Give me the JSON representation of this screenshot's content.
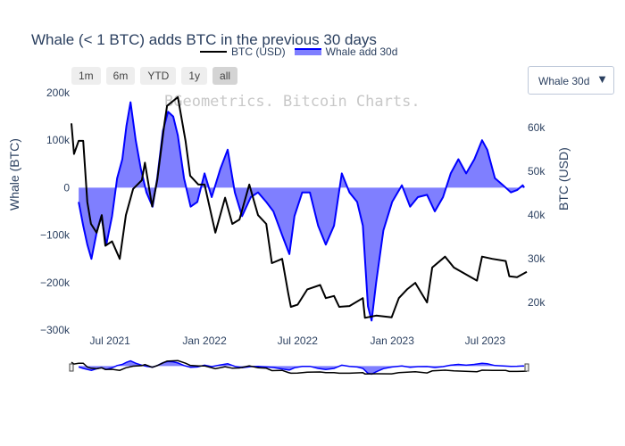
{
  "title": "Whale (< 1 BTC) adds BTC in the previous 30 days",
  "watermark": "BGeometrics. Bitcoin Charts.",
  "range_buttons": [
    "1m",
    "6m",
    "YTD",
    "1y",
    "all"
  ],
  "active_range": "all",
  "dropdown": {
    "selected": "Whale 30d",
    "icon": "caret-down-icon"
  },
  "legend": [
    {
      "name": "BTC (USD)",
      "style": "line",
      "color": "#000000"
    },
    {
      "name": "Whale add 30d",
      "style": "area",
      "color": "#0000ff"
    }
  ],
  "colors": {
    "whale_line": "#0000ff",
    "whale_fill": "rgba(0,0,255,0.5)",
    "btc_line": "#000000",
    "text": "#2a3f5f"
  },
  "chart_data": {
    "type": "area",
    "title": "Whale (< 1 BTC) adds BTC in the previous 30 days",
    "y_left_label": "Whale (BTC)",
    "y_right_label": "BTC (USD)",
    "x_ticks": [
      "Jul 2021",
      "Jan 2022",
      "Jul 2022",
      "Jan 2023",
      "Jul 2023"
    ],
    "y_left_ticks": [
      "−300k",
      "−200k",
      "−100k",
      "0",
      "100k",
      "200k"
    ],
    "y_right_ticks": [
      "20k",
      "30k",
      "40k",
      "50k",
      "60k"
    ],
    "x_range": [
      "2021-04-17",
      "2023-09-20"
    ],
    "y_left_range": [
      -300000,
      200000
    ],
    "y_right_range": [
      13700,
      68000
    ],
    "legend_position": "top",
    "rangeslider": true,
    "series": [
      {
        "name": "Whale add 30d",
        "axis": "left",
        "points": [
          [
            "2021-05-01",
            -30000
          ],
          [
            "2021-05-10",
            -80000
          ],
          [
            "2021-05-18",
            -120000
          ],
          [
            "2021-05-26",
            -150000
          ],
          [
            "2021-06-05",
            -95000
          ],
          [
            "2021-06-14",
            -60000
          ],
          [
            "2021-06-24",
            -120000
          ],
          [
            "2021-07-05",
            -60000
          ],
          [
            "2021-07-15",
            20000
          ],
          [
            "2021-07-25",
            60000
          ],
          [
            "2021-08-02",
            130000
          ],
          [
            "2021-08-10",
            180000
          ],
          [
            "2021-08-20",
            100000
          ],
          [
            "2021-08-30",
            40000
          ],
          [
            "2021-09-10",
            -10000
          ],
          [
            "2021-09-22",
            -40000
          ],
          [
            "2021-10-01",
            20000
          ],
          [
            "2021-10-12",
            120000
          ],
          [
            "2021-10-22",
            160000
          ],
          [
            "2021-11-01",
            150000
          ],
          [
            "2021-11-10",
            110000
          ],
          [
            "2021-11-22",
            20000
          ],
          [
            "2021-12-05",
            -40000
          ],
          [
            "2021-12-18",
            -30000
          ],
          [
            "2022-01-01",
            30000
          ],
          [
            "2022-01-15",
            -20000
          ],
          [
            "2022-02-01",
            40000
          ],
          [
            "2022-02-15",
            80000
          ],
          [
            "2022-03-01",
            -10000
          ],
          [
            "2022-03-15",
            -60000
          ],
          [
            "2022-04-01",
            -20000
          ],
          [
            "2022-04-15",
            -10000
          ],
          [
            "2022-05-01",
            -30000
          ],
          [
            "2022-05-15",
            -50000
          ],
          [
            "2022-06-01",
            -100000
          ],
          [
            "2022-06-15",
            -140000
          ],
          [
            "2022-06-25",
            -60000
          ],
          [
            "2022-07-10",
            -10000
          ],
          [
            "2022-07-25",
            -10000
          ],
          [
            "2022-08-10",
            -80000
          ],
          [
            "2022-08-25",
            -120000
          ],
          [
            "2022-09-10",
            -80000
          ],
          [
            "2022-09-25",
            30000
          ],
          [
            "2022-10-10",
            -10000
          ],
          [
            "2022-10-25",
            -30000
          ],
          [
            "2022-11-05",
            -80000
          ],
          [
            "2022-11-15",
            -250000
          ],
          [
            "2022-11-22",
            -280000
          ],
          [
            "2022-12-01",
            -200000
          ],
          [
            "2022-12-15",
            -90000
          ],
          [
            "2023-01-01",
            -30000
          ],
          [
            "2023-01-20",
            5000
          ],
          [
            "2023-02-05",
            -40000
          ],
          [
            "2023-02-20",
            -20000
          ],
          [
            "2023-03-10",
            -15000
          ],
          [
            "2023-03-25",
            -50000
          ],
          [
            "2023-04-10",
            -20000
          ],
          [
            "2023-04-25",
            30000
          ],
          [
            "2023-05-10",
            60000
          ],
          [
            "2023-05-25",
            30000
          ],
          [
            "2023-06-10",
            60000
          ],
          [
            "2023-06-25",
            100000
          ],
          [
            "2023-07-05",
            80000
          ],
          [
            "2023-07-20",
            20000
          ],
          [
            "2023-08-05",
            5000
          ],
          [
            "2023-08-20",
            -10000
          ],
          [
            "2023-09-01",
            -5000
          ],
          [
            "2023-09-12",
            5000
          ],
          [
            "2023-09-15",
            0
          ]
        ]
      },
      {
        "name": "BTC (USD)",
        "axis": "right",
        "points": [
          [
            "2021-04-17",
            61000
          ],
          [
            "2021-04-22",
            54000
          ],
          [
            "2021-05-01",
            57000
          ],
          [
            "2021-05-10",
            57000
          ],
          [
            "2021-05-18",
            43000
          ],
          [
            "2021-05-25",
            38000
          ],
          [
            "2021-06-05",
            36000
          ],
          [
            "2021-06-15",
            40000
          ],
          [
            "2021-06-22",
            33000
          ],
          [
            "2021-07-05",
            34000
          ],
          [
            "2021-07-20",
            30000
          ],
          [
            "2021-08-01",
            40000
          ],
          [
            "2021-08-15",
            46000
          ],
          [
            "2021-09-01",
            48000
          ],
          [
            "2021-09-07",
            52000
          ],
          [
            "2021-09-21",
            42000
          ],
          [
            "2021-10-01",
            48000
          ],
          [
            "2021-10-15",
            61000
          ],
          [
            "2021-10-20",
            65000
          ],
          [
            "2021-11-10",
            67000
          ],
          [
            "2021-11-25",
            57000
          ],
          [
            "2021-12-04",
            49000
          ],
          [
            "2021-12-20",
            47000
          ],
          [
            "2022-01-01",
            47000
          ],
          [
            "2022-01-22",
            36000
          ],
          [
            "2022-02-10",
            44000
          ],
          [
            "2022-02-24",
            38000
          ],
          [
            "2022-03-10",
            39000
          ],
          [
            "2022-03-29",
            47000
          ],
          [
            "2022-04-15",
            40000
          ],
          [
            "2022-05-01",
            38000
          ],
          [
            "2022-05-12",
            29000
          ],
          [
            "2022-06-01",
            30000
          ],
          [
            "2022-06-13",
            22000
          ],
          [
            "2022-06-18",
            19000
          ],
          [
            "2022-07-01",
            19500
          ],
          [
            "2022-07-20",
            23000
          ],
          [
            "2022-08-14",
            24000
          ],
          [
            "2022-08-25",
            21000
          ],
          [
            "2022-09-10",
            21500
          ],
          [
            "2022-09-20",
            19000
          ],
          [
            "2022-10-10",
            19200
          ],
          [
            "2022-11-05",
            21000
          ],
          [
            "2022-11-09",
            16500
          ],
          [
            "2022-12-01",
            17000
          ],
          [
            "2022-12-31",
            16600
          ],
          [
            "2023-01-14",
            21000
          ],
          [
            "2023-01-30",
            23000
          ],
          [
            "2023-02-15",
            24500
          ],
          [
            "2023-03-10",
            20000
          ],
          [
            "2023-03-20",
            28000
          ],
          [
            "2023-04-14",
            30500
          ],
          [
            "2023-05-01",
            28000
          ],
          [
            "2023-06-15",
            25000
          ],
          [
            "2023-06-25",
            30500
          ],
          [
            "2023-07-15",
            30000
          ],
          [
            "2023-08-10",
            29500
          ],
          [
            "2023-08-17",
            26000
          ],
          [
            "2023-09-01",
            25800
          ],
          [
            "2023-09-20",
            27000
          ]
        ]
      }
    ]
  }
}
